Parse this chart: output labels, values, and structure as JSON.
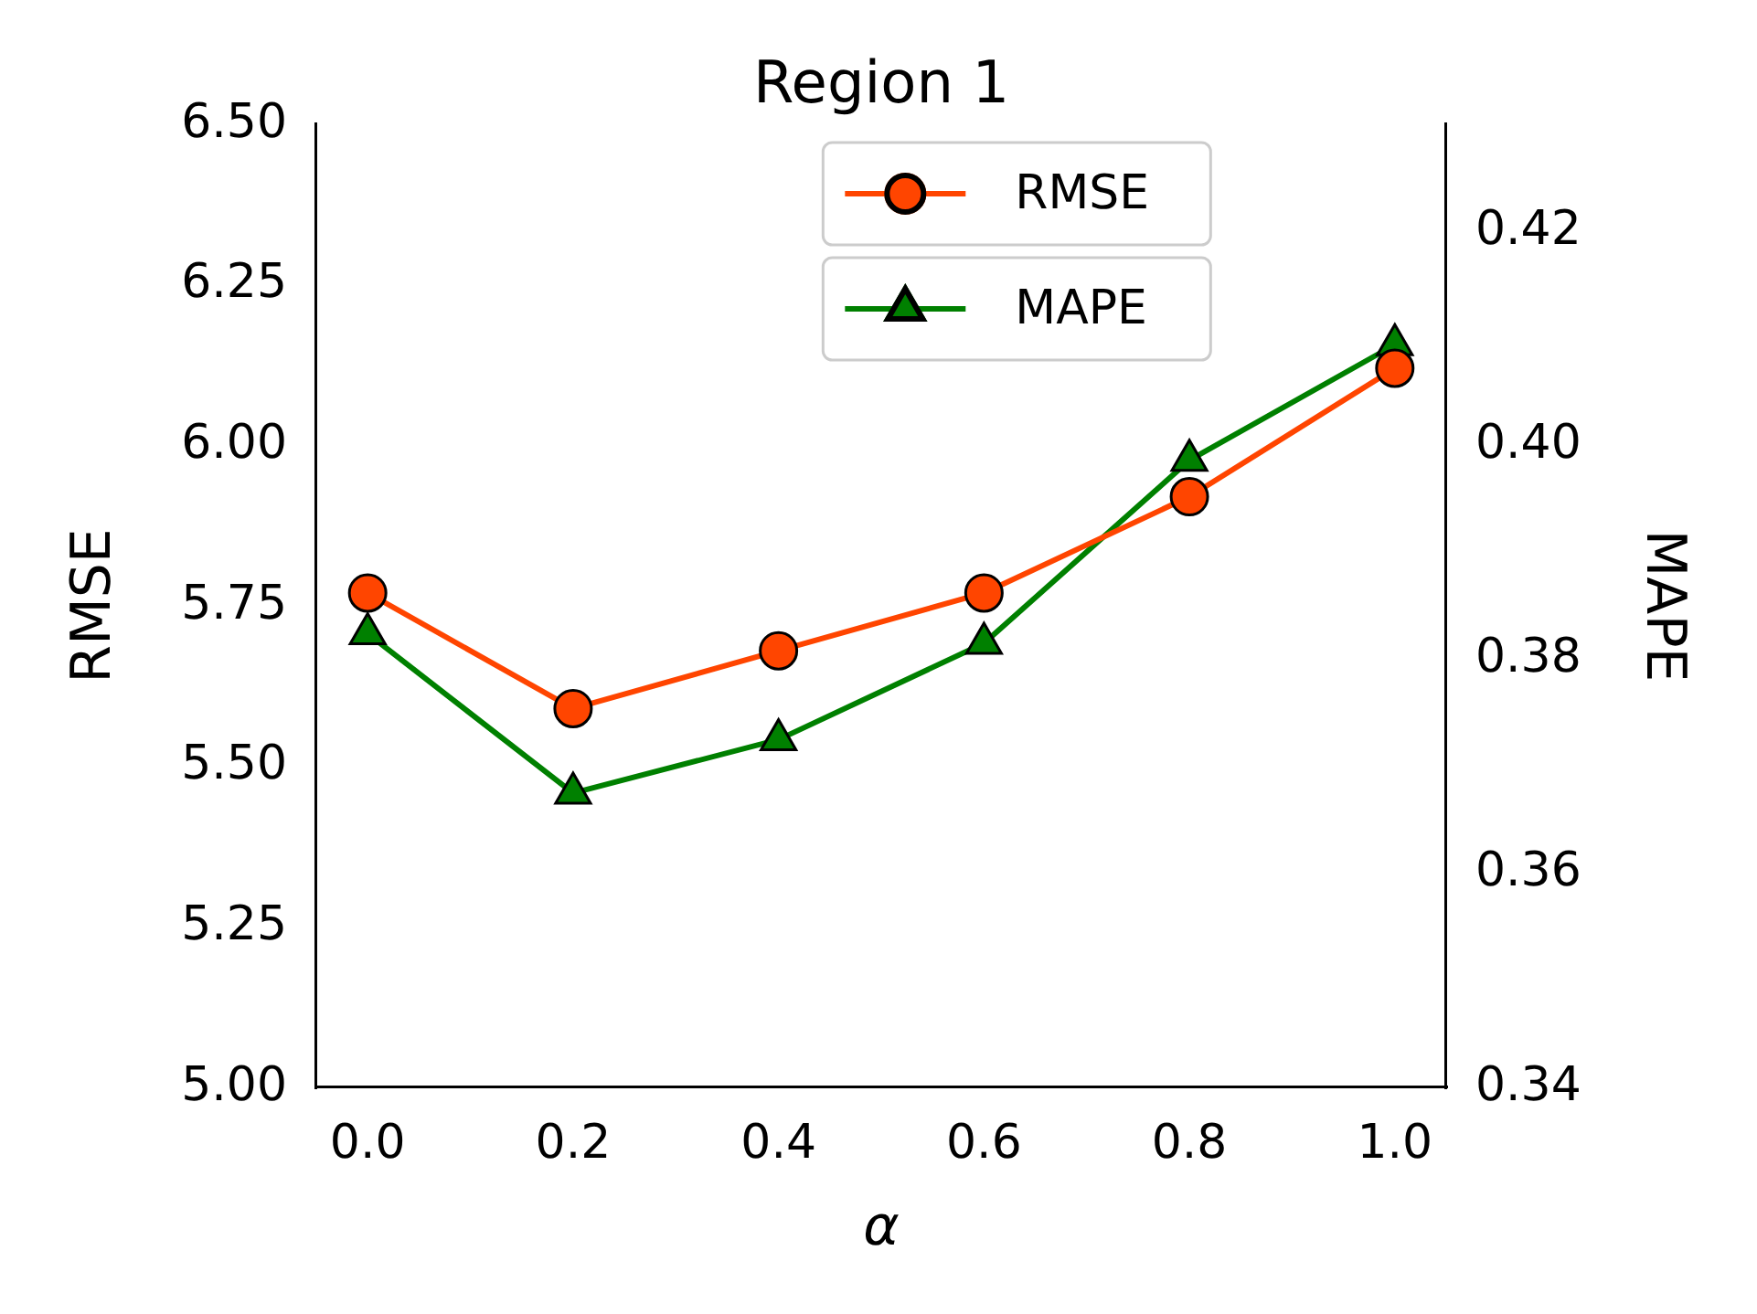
{
  "chart_data": {
    "type": "line",
    "title": "Region 1",
    "xlabel": "α",
    "ylabel": "RMSE",
    "y2label": "MAPE",
    "x": [
      0,
      0.2,
      0.4,
      0.6,
      0.8,
      1.0
    ],
    "series": [
      {
        "name": "RMSE",
        "color": "#ff4500",
        "marker": "circle",
        "values": [
          5.77,
          5.59,
          5.68,
          5.77,
          5.92,
          6.12
        ]
      },
      {
        "name": "MAPE",
        "color": "#008000",
        "marker": "triangle",
        "axis": "y2",
        "values": [
          0.3824,
          0.3675,
          0.3725,
          0.3815,
          0.3986,
          0.4094
        ]
      }
    ],
    "xlim": [
      -0.05,
      1.05
    ],
    "xticks": [
      {
        "value": 0,
        "label": "0.0"
      },
      {
        "value": 0.2,
        "label": "0.2"
      },
      {
        "value": 0.4,
        "label": "0.4"
      },
      {
        "value": 0.6,
        "label": "0.6"
      },
      {
        "value": 0.8,
        "label": "0.8"
      },
      {
        "value": 1,
        "label": "1.0"
      }
    ],
    "ylim": [
      5,
      6.5
    ],
    "yticks": [
      {
        "value": 5,
        "label": "5.00"
      },
      {
        "value": 5.25,
        "label": "5.25"
      },
      {
        "value": 5.5,
        "label": "5.50"
      },
      {
        "value": 5.75,
        "label": "5.75"
      },
      {
        "value": 6,
        "label": "6.00"
      },
      {
        "value": 6.25,
        "label": "6.25"
      },
      {
        "value": 6.5,
        "label": "6.50"
      }
    ],
    "y2lim": [
      0.34,
      0.43
    ],
    "y2ticks": [
      0.34,
      0.36,
      0.38,
      {
        "value": 0.4,
        "label": "0.40"
      },
      0.42
    ],
    "grid": false,
    "legend": "top",
    "line_style": "solid"
  }
}
